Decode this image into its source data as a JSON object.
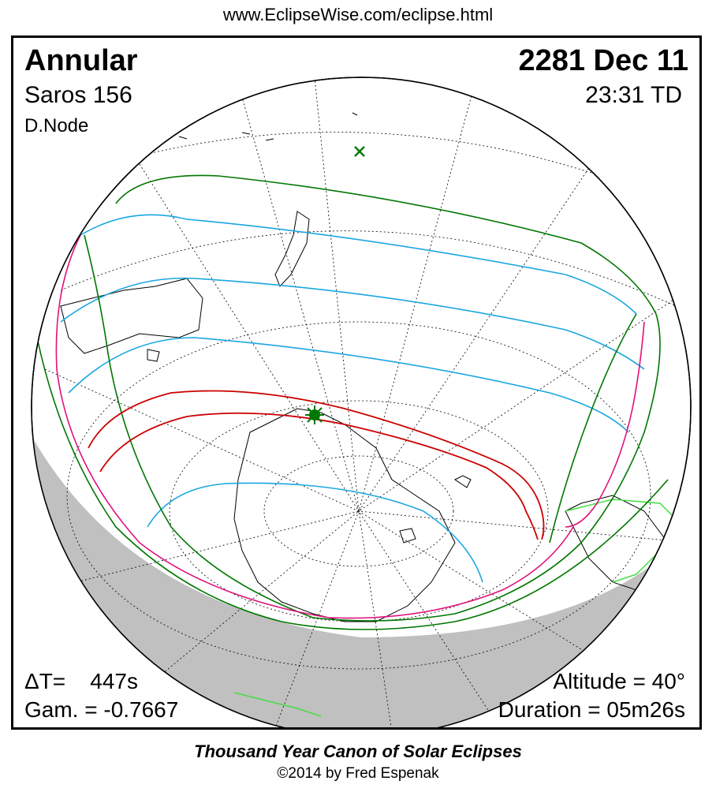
{
  "header": {
    "url": "www.EclipseWise.com/eclipse.html"
  },
  "eclipse": {
    "type": "Annular",
    "date": "2281 Dec 11",
    "saros": "Saros 156",
    "time": "23:31 TD",
    "node": "D.Node",
    "delta_t": "ΔT=    447s",
    "gamma": "Gam. = -0.7667",
    "altitude": "Altitude = 40°",
    "duration": "Duration = 05m26s"
  },
  "footer": {
    "title": "Thousand Year Canon of Solar Eclipses",
    "credit": "©2014 by Fred Espenak"
  },
  "colors": {
    "central_path": "#cc0000",
    "penumbra_limit": "#007700",
    "magnitude_lines": "#1aa7e0",
    "rise_set": "#e0127a",
    "coastline": "#000000",
    "night_side": "#c0c0c0",
    "land_highlight": "#44dd44"
  },
  "markers": {
    "greatest_eclipse": "star-marker",
    "subsolar_point": "x-marker"
  }
}
